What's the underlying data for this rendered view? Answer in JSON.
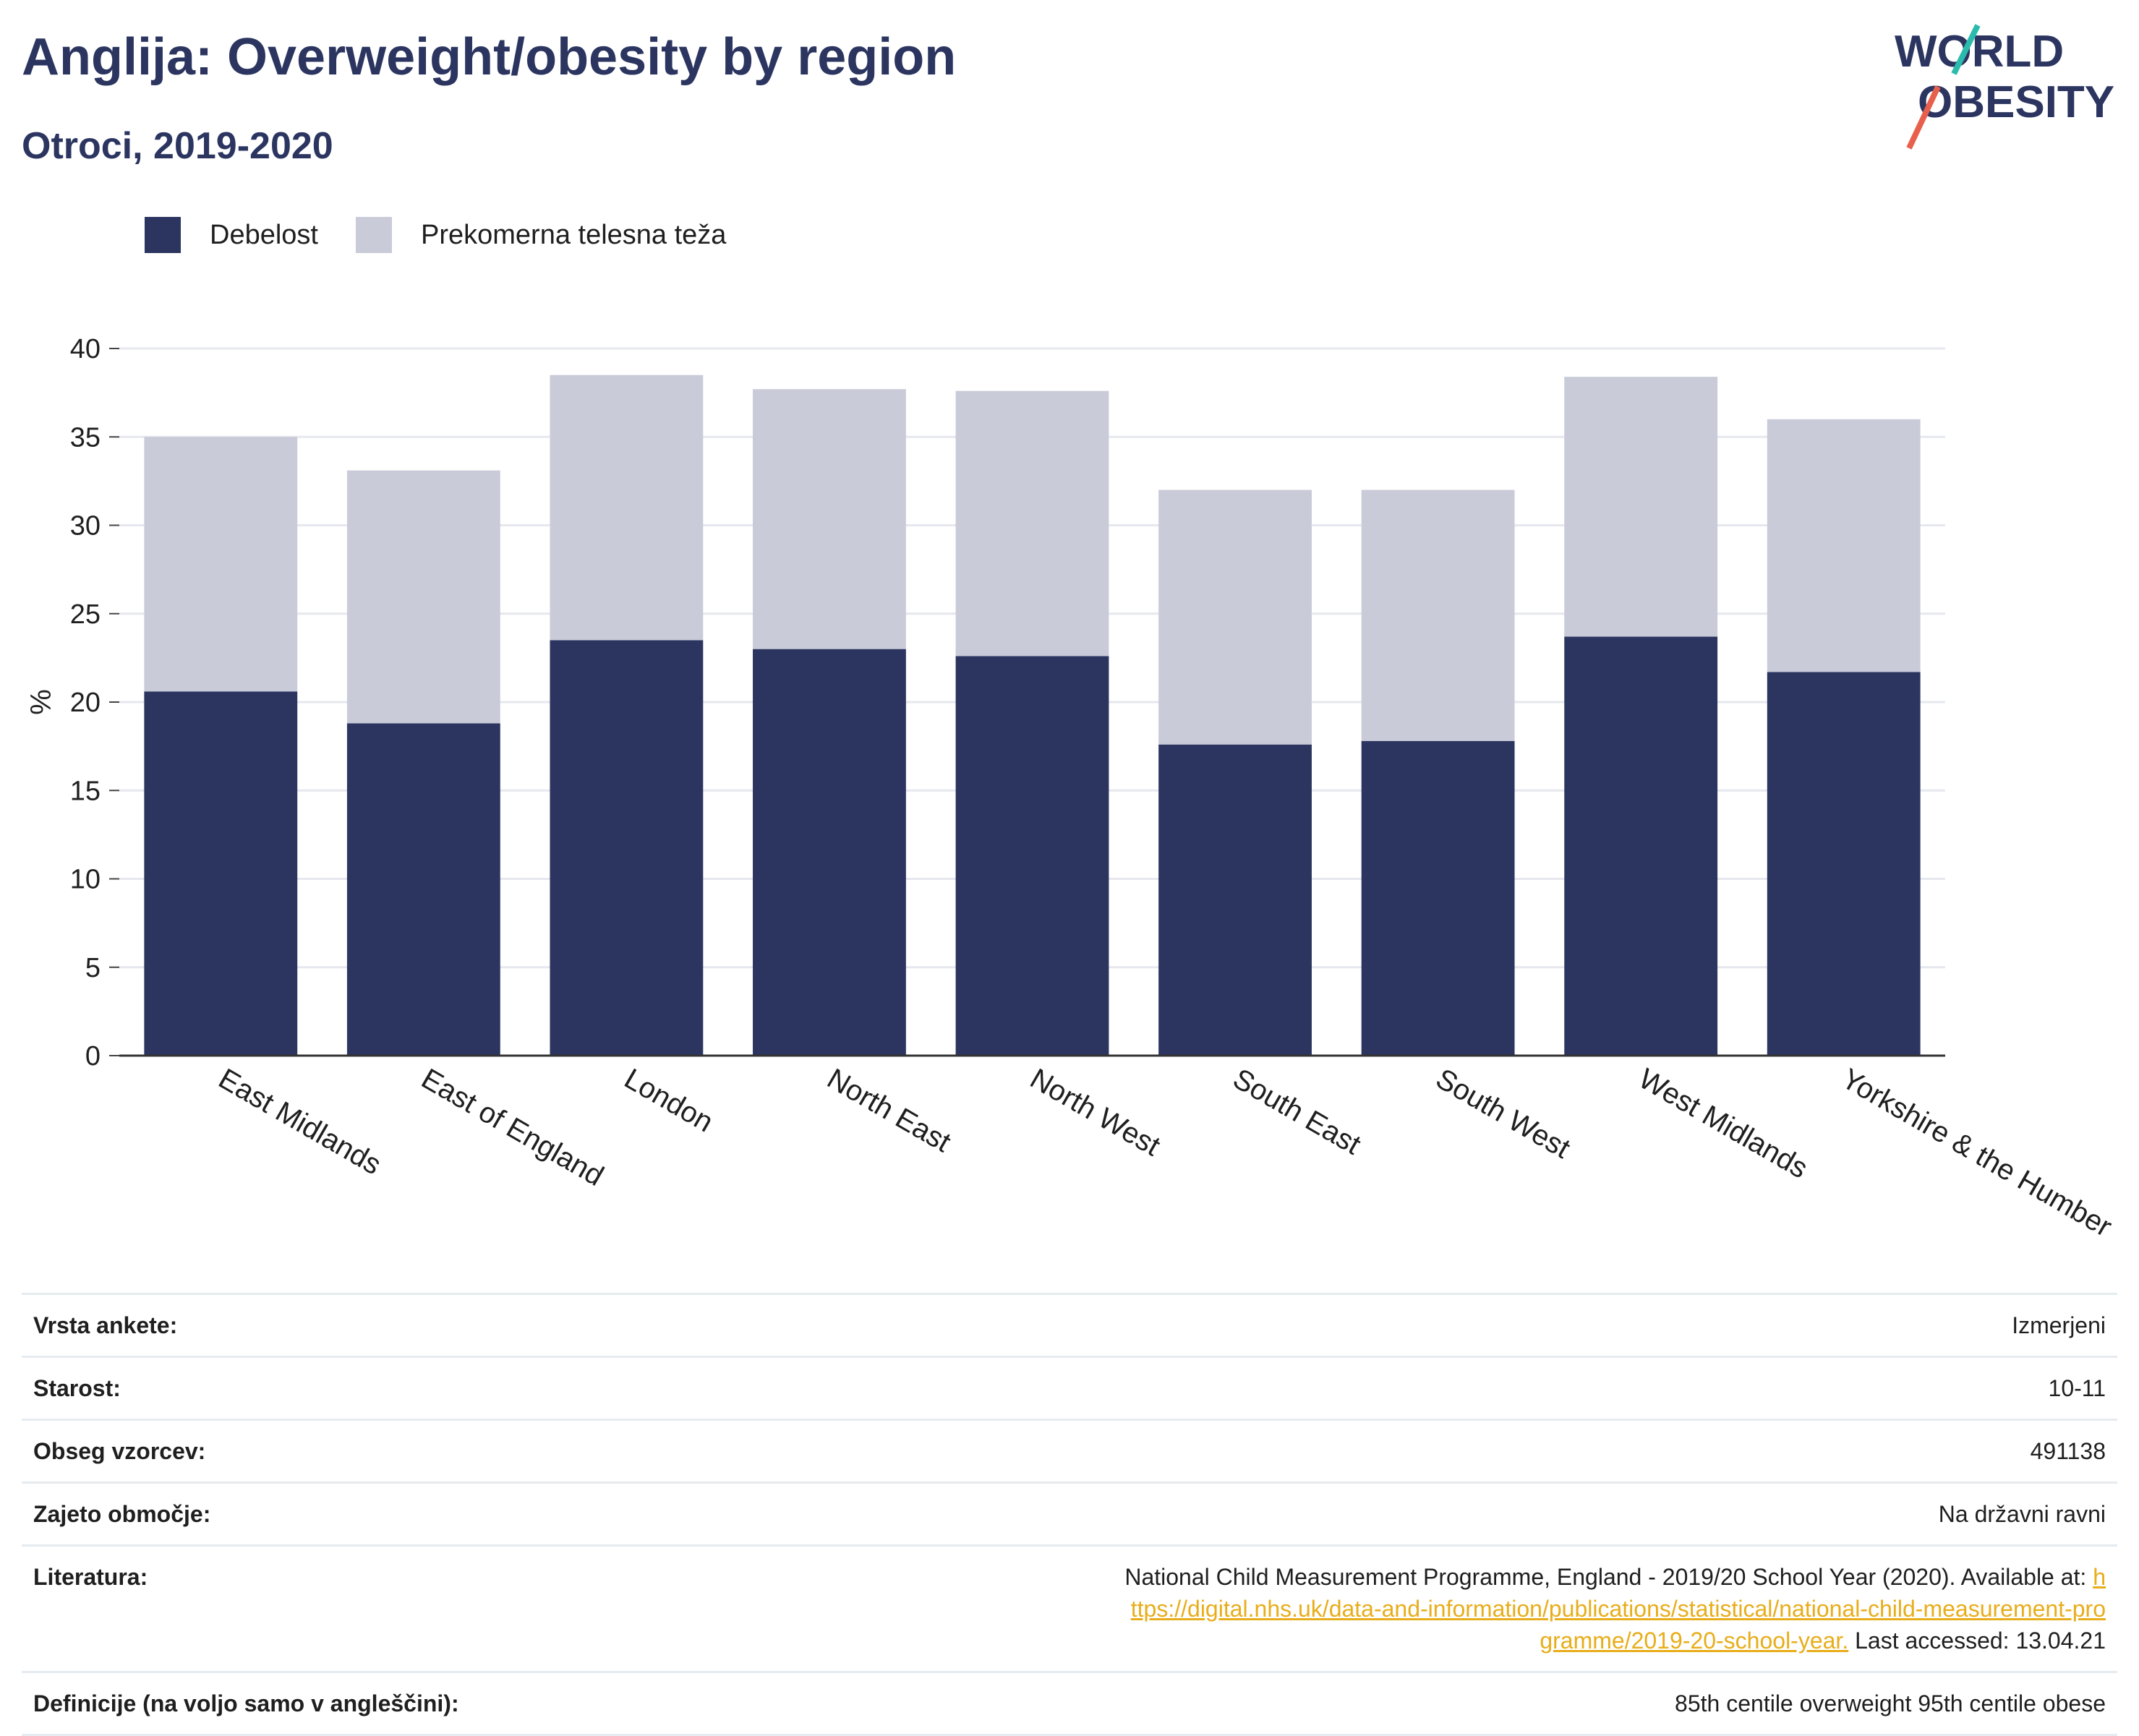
{
  "header": {
    "title": "Anglija: Overweight/obesity by region",
    "subtitle": "Otroci, 2019-2020"
  },
  "logo": {
    "line1": "WORLD",
    "line2": "OBESITY",
    "accent_colors": [
      "#2bbbad",
      "#e8604c"
    ]
  },
  "legend": [
    {
      "label": "Debelost",
      "color": "#2b3560"
    },
    {
      "label": "Prekomerna telesna teža",
      "color": "#c9cbd8"
    }
  ],
  "chart_data": {
    "type": "bar",
    "stacked": true,
    "categories": [
      "East Midlands",
      "East of England",
      "London",
      "North East",
      "North West",
      "South East",
      "South West",
      "West Midlands",
      "Yorkshire & the Humber"
    ],
    "series": [
      {
        "name": "Debelost",
        "color": "#2b3560",
        "values": [
          20.6,
          18.8,
          23.5,
          23.0,
          22.6,
          17.6,
          17.8,
          23.7,
          21.7
        ]
      },
      {
        "name": "Prekomerna telesna teža",
        "color": "#c9cbd8",
        "values": [
          14.4,
          14.3,
          15.0,
          14.7,
          15.0,
          14.4,
          14.2,
          14.7,
          14.3
        ]
      }
    ],
    "ylabel": "%",
    "xlabel": "",
    "ylim": [
      0,
      40
    ],
    "yticks": [
      0,
      5,
      10,
      15,
      20,
      25,
      30,
      35,
      40
    ],
    "grid": true
  },
  "info": [
    {
      "key": "Vrsta ankete:",
      "value": "Izmerjeni"
    },
    {
      "key": "Starost:",
      "value": "10-11"
    },
    {
      "key": "Obseg vzorcev:",
      "value": "491138"
    },
    {
      "key": "Zajeto območje:",
      "value": "Na državni ravni"
    },
    {
      "key": "Literatura:",
      "text_before": "National Child Measurement Programme, England - 2019/20 School Year (2020). Available at: ",
      "link": "https://digital.nhs.uk/data-and-information/publications/statistical/national-child-measurement-programme/2019-20-school-year.",
      "text_after": " Last accessed: 13.04.21"
    },
    {
      "key": "Definicije (na voljo samo v angleščini):",
      "value": "85th centile overweight 95th centile obese"
    }
  ]
}
